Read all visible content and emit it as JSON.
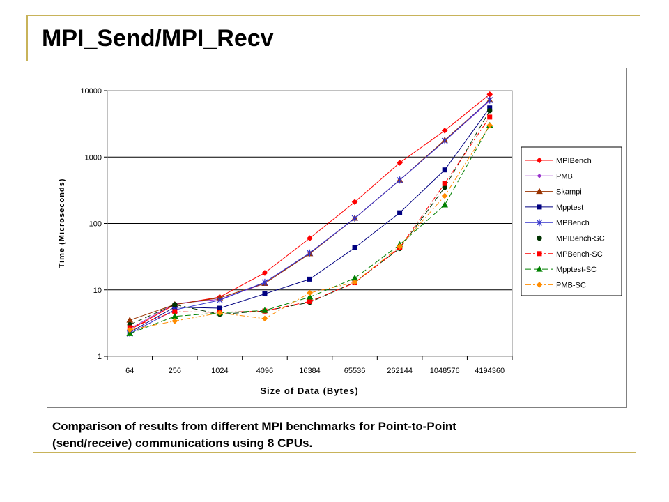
{
  "slide": {
    "title": "MPI_Send/MPI_Recv",
    "caption_line1": "Comparison of results from different MPI benchmarks for Point-to-Point",
    "caption_line2": "(send/receive) communications using 8 CPUs.",
    "accent_color": "#c8b35a"
  },
  "chart_data": {
    "type": "line",
    "title": "",
    "xlabel": "Size of Data (Bytes)",
    "ylabel": "Time (Microseconds)",
    "y_scale": "log",
    "ylim": [
      1,
      10000
    ],
    "y_ticks": [
      "1",
      "10",
      "100",
      "1000",
      "10000"
    ],
    "grid": "horizontal major",
    "legend_position": "right",
    "categories": [
      "64",
      "256",
      "1024",
      "4096",
      "16384",
      "65536",
      "262144",
      "1048576",
      "4194360"
    ],
    "series": [
      {
        "name": "MPIBench",
        "color": "#ff0000",
        "dash": "solid",
        "marker": "diamond",
        "values": [
          2.5,
          6.0,
          7.8,
          18,
          60,
          210,
          820,
          2500,
          8800
        ]
      },
      {
        "name": "PMB",
        "color": "#9933cc",
        "dash": "solid",
        "marker": "diamond-small",
        "values": [
          2.6,
          6.2,
          7.2,
          12.5,
          36,
          120,
          450,
          1750,
          7000
        ]
      },
      {
        "name": "Skampi",
        "color": "#993300",
        "dash": "solid",
        "marker": "triangle",
        "values": [
          3.5,
          6.0,
          7.6,
          12.5,
          35,
          120,
          450,
          1800,
          7200
        ]
      },
      {
        "name": "Mpptest",
        "color": "#000080",
        "dash": "solid",
        "marker": "square",
        "values": [
          2.3,
          5.5,
          5.3,
          8.7,
          14.5,
          43,
          145,
          640,
          5500
        ]
      },
      {
        "name": "MPBench",
        "color": "#3333cc",
        "dash": "solid",
        "marker": "star",
        "values": [
          2.2,
          5.0,
          7.0,
          13,
          36,
          120,
          450,
          1750,
          7200
        ]
      },
      {
        "name": "MPIBench-SC",
        "color": "#003300",
        "dash": "8,4",
        "marker": "circle",
        "values": [
          3.0,
          6.0,
          4.3,
          4.8,
          6.5,
          13,
          42,
          350,
          5000
        ]
      },
      {
        "name": "MPBench-SC",
        "color": "#ff0000",
        "dash": "8,3,2,3",
        "marker": "square",
        "values": [
          2.7,
          4.7,
          4.6,
          4.8,
          6.7,
          12.8,
          43,
          400,
          4000
        ]
      },
      {
        "name": "Mpptest-SC",
        "color": "#008000",
        "dash": "8,4",
        "marker": "triangle",
        "values": [
          2.2,
          4.0,
          4.5,
          4.9,
          7.8,
          15,
          48,
          190,
          3000
        ]
      },
      {
        "name": "PMB-SC",
        "color": "#ff8c00",
        "dash": "8,3,2,3",
        "marker": "diamond",
        "values": [
          2.5,
          3.4,
          4.5,
          3.7,
          9.0,
          13,
          45,
          260,
          3000
        ]
      }
    ]
  }
}
